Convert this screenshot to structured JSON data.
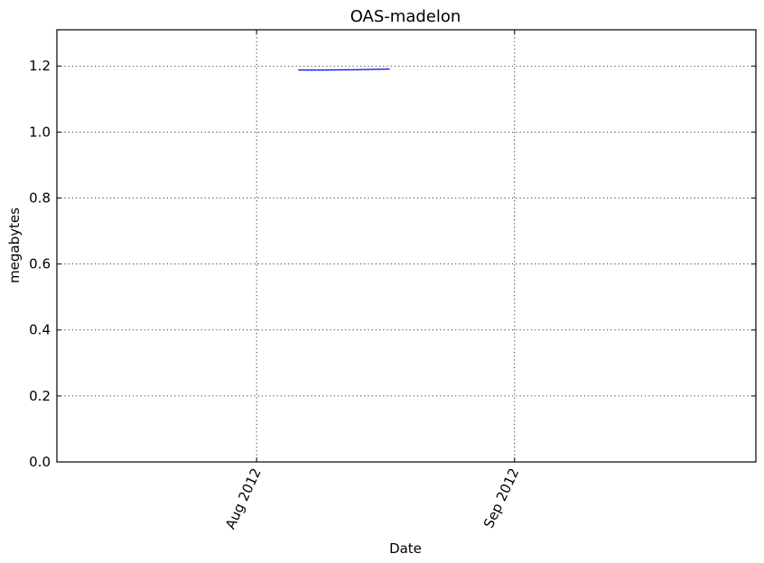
{
  "chart_data": {
    "type": "line",
    "title": "OAS-madelon",
    "xlabel": "Date",
    "ylabel": "megabytes",
    "x_axis_type": "date",
    "xlim": [
      "2012-07-08",
      "2012-09-30"
    ],
    "ylim": [
      0,
      1.31
    ],
    "grid": true,
    "x_ticks": [
      {
        "date": "2012-08-01",
        "label": "Aug 2012"
      },
      {
        "date": "2012-09-01",
        "label": "Sep 2012"
      }
    ],
    "y_ticks": [
      {
        "value": 0.0,
        "label": "0.0"
      },
      {
        "value": 0.2,
        "label": "0.2"
      },
      {
        "value": 0.4,
        "label": "0.4"
      },
      {
        "value": 0.6,
        "label": "0.6"
      },
      {
        "value": 0.8,
        "label": "0.8"
      },
      {
        "value": 1.0,
        "label": "1.0"
      },
      {
        "value": 1.2,
        "label": "1.2"
      }
    ],
    "series": [
      {
        "color": "#0000ff",
        "points": [
          {
            "x": "2012-08-06",
            "y": 1.188
          },
          {
            "x": "2012-08-09",
            "y": 1.188
          },
          {
            "x": "2012-08-13",
            "y": 1.189
          },
          {
            "x": "2012-08-17",
            "y": 1.191
          }
        ]
      }
    ]
  }
}
